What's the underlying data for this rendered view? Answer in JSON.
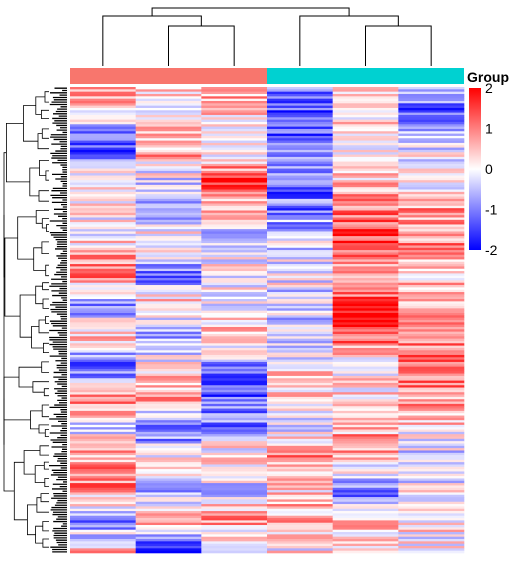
{
  "chart_data": {
    "type": "heatmap",
    "title": "",
    "xlabel": "",
    "ylabel": "",
    "samples": 6,
    "rows": 200,
    "groups": [
      {
        "name": "",
        "columns": [
          0,
          1,
          2
        ],
        "color": "#F8766D"
      },
      {
        "name": "",
        "columns": [
          3,
          4,
          5
        ],
        "color": "#00D1D1"
      }
    ],
    "legend": {
      "title": "Group",
      "ticks": [
        2,
        1,
        0,
        -1,
        -2
      ],
      "range": [
        -2,
        2
      ],
      "colors": {
        "low": "#0000FF",
        "mid": "#FFFFFF",
        "high": "#FF0000"
      },
      "placement": "right"
    },
    "column_dendrogram": {
      "merges": [
        [
          1,
          2
        ],
        [
          0,
          "g1"
        ],
        [
          4,
          5
        ],
        [
          3,
          "g2"
        ],
        [
          "a",
          "b"
        ]
      ]
    },
    "column_profiles": [
      [
        0.9,
        -0.2,
        -1.4,
        0.2,
        -0.1,
        0.3,
        1.1,
        -0.9,
        0.5,
        -1.6,
        1.2,
        -0.3,
        0.8,
        1.0,
        -1.1,
        0.6
      ],
      [
        0.3,
        0.1,
        0.8,
        -0.3,
        -0.8,
        0.4,
        -1.3,
        0.7,
        -0.6,
        0.2,
        0.9,
        -1.5,
        0.4,
        -0.9,
        0.7,
        -1.8
      ],
      [
        0.7,
        0.5,
        -0.4,
        1.7,
        0.3,
        -0.6,
        0.2,
        -0.2,
        0.4,
        -0.8,
        -1.3,
        -0.9,
        0.6,
        -0.4,
        0.8,
        -0.6
      ],
      [
        -1.2,
        -1.5,
        -0.8,
        -1.3,
        -1.0,
        -0.3,
        0.1,
        -0.5,
        -0.4,
        0.2,
        0.6,
        -0.2,
        0.9,
        0.3,
        0.7,
        0.1
      ],
      [
        0.4,
        0.1,
        0.2,
        0.6,
        1.2,
        1.6,
        0.4,
        1.5,
        1.3,
        0.1,
        0.4,
        0.7,
        0.6,
        -1.2,
        0.3,
        0.5
      ],
      [
        -0.6,
        -1.4,
        -0.2,
        -0.1,
        0.8,
        0.9,
        0.6,
        0.4,
        0.7,
        1.3,
        0.9,
        0.3,
        -0.5,
        0.1,
        0.2,
        0.0
      ]
    ]
  }
}
